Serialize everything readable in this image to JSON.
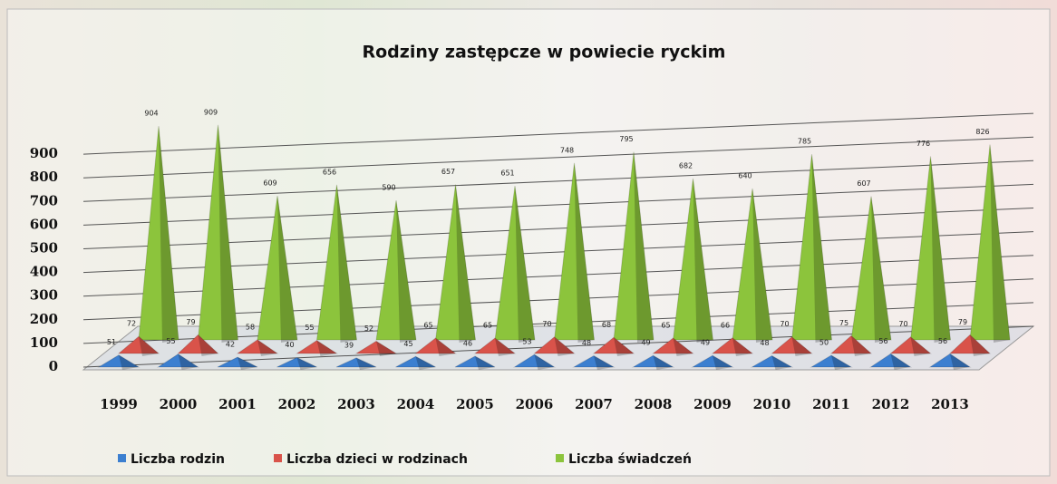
{
  "chart_data": {
    "type": "pyramid3d",
    "title": "Rodziny zastępcze w powiecie ryckim",
    "categories": [
      "1999",
      "2000",
      "2001",
      "2002",
      "2003",
      "2004",
      "2005",
      "2006",
      "2007",
      "2008",
      "2009",
      "2010",
      "2011",
      "2012",
      "2013"
    ],
    "series": [
      {
        "name": "Liczba rodzin",
        "color": "#3c7fd0",
        "values": [
          51,
          55,
          42,
          40,
          39,
          45,
          46,
          53,
          48,
          49,
          49,
          48,
          50,
          56,
          56
        ]
      },
      {
        "name": "Liczba dzieci w rodzinach",
        "color": "#d9534a",
        "values": [
          72,
          79,
          58,
          55,
          52,
          65,
          65,
          70,
          68,
          65,
          66,
          70,
          75,
          70,
          79
        ]
      },
      {
        "name": "Liczba świadczeń",
        "color": "#8cc43c",
        "values": [
          904,
          909,
          609,
          656,
          590,
          657,
          651,
          748,
          795,
          682,
          640,
          785,
          607,
          776,
          826
        ]
      }
    ],
    "ylim": [
      0,
      1000
    ],
    "yticks": [
      0,
      100,
      200,
      300,
      400,
      500,
      600,
      700,
      800,
      900
    ],
    "grid": true,
    "legend": "bottom"
  }
}
